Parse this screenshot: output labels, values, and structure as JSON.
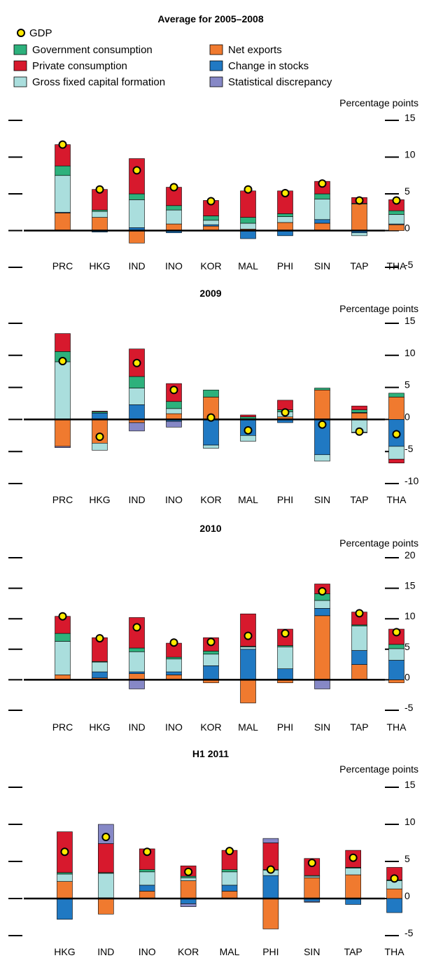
{
  "legend": {
    "gdp": "GDP",
    "government": "Government consumption",
    "private": "Private consumption",
    "gfcf": "Gross fixed capital formation",
    "net_exports": "Net exports",
    "stocks": "Change in stocks",
    "discrepancy": "Statistical discrepancy"
  },
  "colors": {
    "government": "#2db17c",
    "private": "#d7192d",
    "gfcf": "#aadedd",
    "net_exports": "#f07a2f",
    "stocks": "#2079c3",
    "discrepancy": "#8688c6",
    "gdp_fill": "#ffe900"
  },
  "chart_data": [
    {
      "type": "bar",
      "stacked": true,
      "title": "Average for 2005–2008",
      "ylabel": "Percentage points",
      "ylim": [
        -5,
        15
      ],
      "yticks": [
        15,
        10,
        5,
        0,
        -5
      ],
      "categories": [
        "PRC",
        "HKG",
        "IND",
        "INO",
        "KOR",
        "MAL",
        "PHI",
        "SIN",
        "TAP",
        "THA"
      ],
      "series": [
        {
          "name": "Net exports",
          "key": "net_exports",
          "values": [
            2.4,
            1.8,
            -1.7,
            0.9,
            0.6,
            0.2,
            1.1,
            1.0,
            3.6,
            0.8
          ]
        },
        {
          "name": "Change in stocks",
          "key": "stocks",
          "values": [
            0.1,
            -0.2,
            0.4,
            -0.3,
            0.2,
            -1.1,
            -0.7,
            0.5,
            -0.3,
            0.1
          ]
        },
        {
          "name": "Gross fixed capital formation",
          "key": "gfcf",
          "values": [
            5.0,
            0.8,
            3.8,
            1.9,
            0.6,
            0.8,
            0.8,
            2.8,
            -0.4,
            1.3
          ]
        },
        {
          "name": "Government consumption",
          "key": "government",
          "values": [
            1.3,
            0.2,
            0.8,
            0.6,
            0.6,
            0.8,
            0.4,
            0.7,
            0.1,
            0.5
          ]
        },
        {
          "name": "Private consumption",
          "key": "private",
          "values": [
            2.9,
            2.8,
            4.8,
            2.5,
            2.1,
            3.6,
            3.1,
            1.7,
            0.8,
            1.5
          ]
        },
        {
          "name": "Statistical discrepancy",
          "key": "discrepancy",
          "values": [
            0,
            0,
            0,
            0,
            0,
            0,
            0,
            0,
            0,
            0
          ]
        }
      ],
      "gdp": [
        11.7,
        5.6,
        8.2,
        5.9,
        4.0,
        5.6,
        5.1,
        6.4,
        4.1,
        4.1
      ]
    },
    {
      "type": "bar",
      "stacked": true,
      "title": "2009",
      "ylabel": "Percentage points",
      "ylim": [
        -10,
        15
      ],
      "yticks": [
        15,
        10,
        5,
        0,
        -5,
        -10
      ],
      "categories": [
        "PRC",
        "HKG",
        "IND",
        "INO",
        "KOR",
        "MAL",
        "PHI",
        "SIN",
        "TAP",
        "THA"
      ],
      "series": [
        {
          "name": "Net exports",
          "key": "net_exports",
          "values": [
            -4.2,
            -3.7,
            -0.5,
            0.9,
            3.5,
            0.1,
            0.4,
            4.6,
            1.0,
            3.5
          ]
        },
        {
          "name": "Change in stocks",
          "key": "stocks",
          "values": [
            0.0,
            1.0,
            2.3,
            -0.3,
            -4.0,
            -2.5,
            -0.5,
            -5.5,
            0.1,
            -4.2
          ]
        },
        {
          "name": "Gross fixed capital formation",
          "key": "gfcf",
          "values": [
            9.0,
            -1.1,
            2.6,
            0.8,
            -0.5,
            -0.9,
            0.8,
            -1.0,
            -2.0,
            -2.0
          ]
        },
        {
          "name": "Government consumption",
          "key": "government",
          "values": [
            1.6,
            0.2,
            1.8,
            1.1,
            1.1,
            0.3,
            0.3,
            0.3,
            0.4,
            0.6
          ]
        },
        {
          "name": "Private consumption",
          "key": "private",
          "values": [
            2.8,
            0.1,
            4.3,
            2.8,
            0.0,
            0.3,
            1.5,
            0.0,
            0.6,
            -0.6
          ]
        },
        {
          "name": "Statistical discrepancy",
          "key": "discrepancy",
          "values": [
            -0.2,
            0.0,
            -1.3,
            -0.9,
            0.0,
            0.0,
            0.0,
            0.0,
            -0.1,
            0.0
          ]
        }
      ],
      "gdp": [
        9.1,
        -2.7,
        8.8,
        4.6,
        0.3,
        -1.7,
        1.1,
        -0.8,
        -1.9,
        -2.3
      ]
    },
    {
      "type": "bar",
      "stacked": true,
      "title": "2010",
      "ylabel": "Percentage points",
      "ylim": [
        -5,
        20
      ],
      "yticks": [
        20,
        15,
        10,
        5,
        0,
        -5
      ],
      "categories": [
        "PRC",
        "HKG",
        "IND",
        "INO",
        "KOR",
        "MAL",
        "PHI",
        "SIN",
        "TAP",
        "THA"
      ],
      "series": [
        {
          "name": "Net exports",
          "key": "net_exports",
          "values": [
            0.8,
            0.3,
            1.0,
            0.8,
            -0.5,
            -3.8,
            -0.5,
            10.5,
            2.5,
            -0.5
          ]
        },
        {
          "name": "Change in stocks",
          "key": "stocks",
          "values": [
            0.0,
            1.0,
            0.3,
            0.5,
            2.3,
            5.0,
            1.8,
            1.2,
            2.3,
            3.2
          ]
        },
        {
          "name": "Gross fixed capital formation",
          "key": "gfcf",
          "values": [
            5.5,
            1.6,
            3.3,
            2.1,
            1.9,
            0.4,
            3.6,
            1.3,
            4.0,
            1.9
          ]
        },
        {
          "name": "Government consumption",
          "key": "government",
          "values": [
            1.3,
            0.1,
            0.6,
            0.3,
            0.5,
            0.1,
            0.2,
            1.1,
            0.2,
            0.7
          ]
        },
        {
          "name": "Private consumption",
          "key": "private",
          "values": [
            2.8,
            3.9,
            5.0,
            2.3,
            2.2,
            5.3,
            2.7,
            1.6,
            2.1,
            2.5
          ]
        },
        {
          "name": "Statistical discrepancy",
          "key": "discrepancy",
          "values": [
            0.0,
            0.0,
            -1.5,
            0.0,
            0.0,
            0.0,
            0.0,
            -1.5,
            0.0,
            0.0
          ]
        }
      ],
      "gdp": [
        10.4,
        6.8,
        8.6,
        6.1,
        6.2,
        7.2,
        7.6,
        14.5,
        10.9,
        7.8
      ]
    },
    {
      "type": "bar",
      "stacked": true,
      "title": "H1 2011",
      "ylabel": "Percentage points",
      "ylim": [
        -5,
        15
      ],
      "yticks": [
        15,
        10,
        5,
        0,
        -5
      ],
      "categories": [
        "HKG",
        "IND",
        "INO",
        "KOR",
        "MAL",
        "PHI",
        "SIN",
        "TAP",
        "THA"
      ],
      "series": [
        {
          "name": "Net exports",
          "key": "net_exports",
          "values": [
            2.3,
            -2.1,
            1.0,
            2.4,
            1.0,
            -4.1,
            2.8,
            3.2,
            1.3
          ]
        },
        {
          "name": "Change in stocks",
          "key": "stocks",
          "values": [
            -2.8,
            0.1,
            0.8,
            -0.7,
            0.8,
            3.1,
            -0.4,
            -0.8,
            -1.9
          ]
        },
        {
          "name": "Gross fixed capital formation",
          "key": "gfcf",
          "values": [
            1.0,
            3.3,
            1.8,
            0.4,
            1.8,
            0.7,
            0.2,
            0.9,
            1.1
          ]
        },
        {
          "name": "Government consumption",
          "key": "government",
          "values": [
            0.2,
            0.1,
            0.3,
            0.2,
            0.3,
            0.1,
            0.1,
            0.1,
            0.1
          ]
        },
        {
          "name": "Private consumption",
          "key": "private",
          "values": [
            5.5,
            3.9,
            2.8,
            1.4,
            2.6,
            3.6,
            2.3,
            2.3,
            1.7
          ]
        },
        {
          "name": "Statistical discrepancy",
          "key": "discrepancy",
          "values": [
            0.0,
            2.6,
            0.0,
            -0.4,
            0.0,
            0.6,
            -0.1,
            0.0,
            0.0
          ]
        }
      ],
      "gdp": [
        6.3,
        8.3,
        6.3,
        3.6,
        6.4,
        3.9,
        4.8,
        5.5,
        2.7
      ]
    }
  ]
}
